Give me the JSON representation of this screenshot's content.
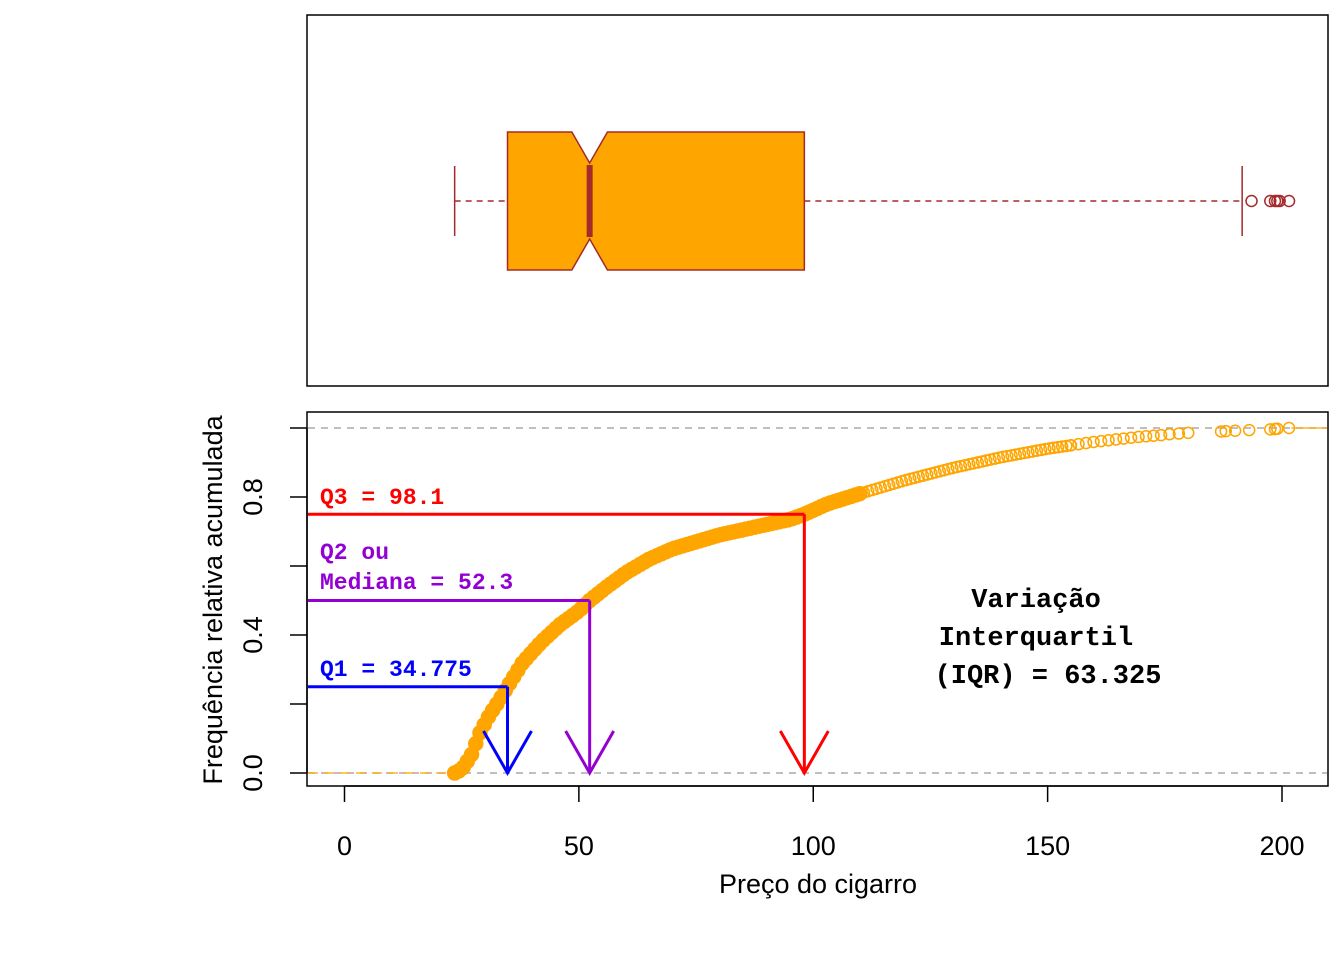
{
  "chart_data": [
    {
      "type": "boxplot",
      "orientation": "horizontal",
      "notched": true,
      "whisker_low": 23.5,
      "q1": 34.775,
      "median": 52.3,
      "q3": 98.1,
      "whisker_high": 191.5,
      "notch_low": 48.5,
      "notch_high": 56.1,
      "outliers": [
        193.5,
        197.5,
        198.5,
        199.0,
        199.5,
        201.5
      ],
      "colors": {
        "fill": "#FFA500",
        "border": "#A52A2A"
      }
    },
    {
      "type": "scatter",
      "subtype": "empirical-cdf",
      "xlabel": "Preço do cigarro",
      "ylabel": "Frequência relativa acumulada",
      "xlim": [
        -8,
        210
      ],
      "ylim": [
        -0.06,
        1.06
      ],
      "x_ticks": [
        "0",
        "50",
        "100",
        "150",
        "200"
      ],
      "x_tick_values": [
        0,
        50,
        100,
        150,
        200
      ],
      "y_ticks": [
        "0.0",
        "0.4",
        "0.8"
      ],
      "y_tick_values": [
        0,
        0.4,
        0.8
      ],
      "reference_lines": [
        0,
        1
      ],
      "cdf_curve": [
        [
          23.5,
          0.0
        ],
        [
          25,
          0.01
        ],
        [
          27,
          0.05
        ],
        [
          29,
          0.12
        ],
        [
          31,
          0.17
        ],
        [
          33,
          0.21
        ],
        [
          34.775,
          0.25
        ],
        [
          38,
          0.32
        ],
        [
          42,
          0.38
        ],
        [
          46,
          0.43
        ],
        [
          50,
          0.47
        ],
        [
          52.3,
          0.5
        ],
        [
          56,
          0.54
        ],
        [
          60,
          0.58
        ],
        [
          65,
          0.62
        ],
        [
          70,
          0.65
        ],
        [
          75,
          0.67
        ],
        [
          80,
          0.69
        ],
        [
          85,
          0.705
        ],
        [
          90,
          0.72
        ],
        [
          95,
          0.735
        ],
        [
          98.1,
          0.75
        ],
        [
          103,
          0.78
        ],
        [
          110,
          0.81
        ],
        [
          120,
          0.85
        ],
        [
          130,
          0.885
        ],
        [
          140,
          0.915
        ],
        [
          150,
          0.94
        ],
        [
          160,
          0.96
        ],
        [
          170,
          0.975
        ],
        [
          180,
          0.985
        ],
        [
          190,
          0.993
        ],
        [
          202,
          1.0
        ]
      ],
      "sparse_tail_points": [
        [
          176,
          0.982
        ],
        [
          178,
          0.984
        ],
        [
          180,
          0.986
        ],
        [
          187,
          0.99
        ],
        [
          188,
          0.991
        ],
        [
          190,
          0.992
        ],
        [
          193,
          0.994
        ],
        [
          197.5,
          0.996
        ],
        [
          198.5,
          0.997
        ],
        [
          199,
          0.998
        ],
        [
          201.5,
          1.0
        ]
      ],
      "annotations": {
        "q1": {
          "label": "Q1 = 34.775",
          "value": 34.775,
          "prob": 0.25,
          "color": "#0000FF"
        },
        "q2": {
          "label_line1": "Q2 ou",
          "label_line2": "Mediana =  52.3",
          "value": 52.3,
          "prob": 0.5,
          "color": "#9400D3"
        },
        "q3": {
          "label": "Q3 =  98.1",
          "value": 98.1,
          "prob": 0.75,
          "color": "#FF0000"
        },
        "iqr_line1": "Variação",
        "iqr_line2": "Interquartil",
        "iqr_line3": "(IQR) =  63.325"
      },
      "colors": {
        "points": "#FFA500",
        "reference": "#AAAAAA"
      }
    }
  ]
}
